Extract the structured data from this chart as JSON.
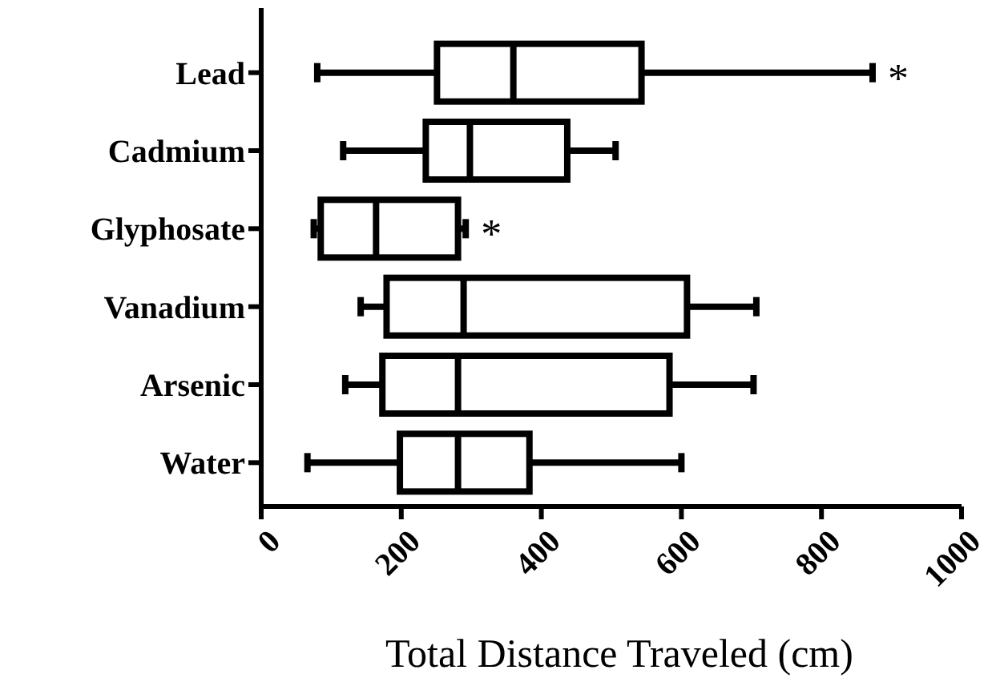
{
  "chart_data": {
    "type": "box",
    "orientation": "horizontal",
    "xlabel": "Total Distance Traveled (cm)",
    "categories": [
      "Lead",
      "Cadmium",
      "Glyphosate",
      "Vanadium",
      "Arsenic",
      "Water"
    ],
    "boxes": [
      {
        "low": 80,
        "q1": 251,
        "median": 360,
        "q3": 543,
        "high": 873
      },
      {
        "low": 117,
        "q1": 235,
        "median": 298,
        "q3": 437,
        "high": 506
      },
      {
        "low": 75,
        "q1": 85,
        "median": 164,
        "q3": 281,
        "high": 292
      },
      {
        "low": 142,
        "q1": 179,
        "median": 289,
        "q3": 608,
        "high": 707
      },
      {
        "low": 120,
        "q1": 173,
        "median": 281,
        "q3": 583,
        "high": 703
      },
      {
        "low": 66,
        "q1": 198,
        "median": 281,
        "q3": 383,
        "high": 600
      }
    ],
    "color": "#000000",
    "xlim": [
      0,
      1000
    ],
    "xticks": [
      0,
      200,
      400,
      600,
      800,
      1000
    ],
    "annotations": [
      {
        "text": "*",
        "x": 873,
        "y": "Lead"
      },
      {
        "text": "*",
        "x": 292,
        "y": "Glyphosate"
      }
    ]
  }
}
